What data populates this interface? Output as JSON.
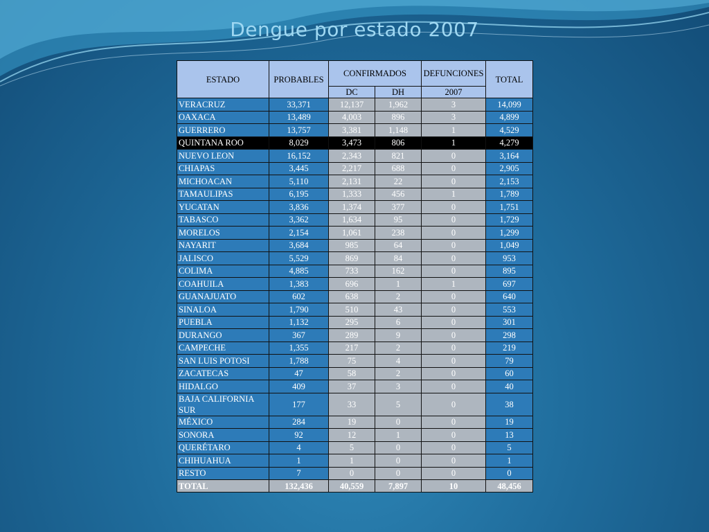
{
  "slide": {
    "title": "Dengue por estado 2007"
  },
  "table": {
    "headers": {
      "estado": "ESTADO",
      "probables": "PROBABLES",
      "confirmados": "CONFIRMADOS",
      "dc": "DC",
      "dh": "DH",
      "defunciones": "DEFUNCIONES",
      "year": "2007",
      "total": "TOTAL"
    },
    "rows": [
      [
        "VERACRUZ",
        "33,371",
        "12,137",
        "1,962",
        "3",
        "14,099"
      ],
      [
        "OAXACA",
        "13,489",
        "4,003",
        "896",
        "3",
        "4,899"
      ],
      [
        "GUERRERO",
        "13,757",
        "3,381",
        "1,148",
        "1",
        "4,529"
      ],
      [
        "QUINTANA ROO",
        "8,029",
        "3,473",
        "806",
        "1",
        "4,279"
      ],
      [
        "NUEVO LEON",
        "16,152",
        "2,343",
        "821",
        "0",
        "3,164"
      ],
      [
        "CHIAPAS",
        "3,445",
        "2,217",
        "688",
        "0",
        "2,905"
      ],
      [
        "MICHOACAN",
        "5,110",
        "2,131",
        "22",
        "0",
        "2,153"
      ],
      [
        "TAMAULIPAS",
        "6,195",
        "1,333",
        "456",
        "1",
        "1,789"
      ],
      [
        "YUCATAN",
        "3,836",
        "1,374",
        "377",
        "0",
        "1,751"
      ],
      [
        "TABASCO",
        "3,362",
        "1,634",
        "95",
        "0",
        "1,729"
      ],
      [
        "MORELOS",
        "2,154",
        "1,061",
        "238",
        "0",
        "1,299"
      ],
      [
        "NAYARIT",
        "3,684",
        "985",
        "64",
        "0",
        "1,049"
      ],
      [
        "JALISCO",
        "5,529",
        "869",
        "84",
        "0",
        "953"
      ],
      [
        "COLIMA",
        "4,885",
        "733",
        "162",
        "0",
        "895"
      ],
      [
        "COAHUILA",
        "1,383",
        "696",
        "1",
        "1",
        "697"
      ],
      [
        "GUANAJUATO",
        "602",
        "638",
        "2",
        "0",
        "640"
      ],
      [
        "SINALOA",
        "1,790",
        "510",
        "43",
        "0",
        "553"
      ],
      [
        "PUEBLA",
        "1,132",
        "295",
        "6",
        "0",
        "301"
      ],
      [
        "DURANGO",
        "367",
        "289",
        "9",
        "0",
        "298"
      ],
      [
        "CAMPECHE",
        "1,355",
        "217",
        "2",
        "0",
        "219"
      ],
      [
        "SAN LUIS POTOSI",
        "1,788",
        "75",
        "4",
        "0",
        "79"
      ],
      [
        "ZACATECAS",
        "47",
        "58",
        "2",
        "0",
        "60"
      ],
      [
        "HIDALGO",
        "409",
        "37",
        "3",
        "0",
        "40"
      ],
      [
        "BAJA CALIFORNIA SUR",
        "177",
        "33",
        "5",
        "0",
        "38"
      ],
      [
        "MÉXICO",
        "284",
        "19",
        "0",
        "0",
        "19"
      ],
      [
        "SONORA",
        "92",
        "12",
        "1",
        "0",
        "13"
      ],
      [
        "QUERÉTARO",
        "4",
        "5",
        "0",
        "0",
        "5"
      ],
      [
        "CHIHUAHUA",
        "1",
        "1",
        "0",
        "0",
        "1"
      ],
      [
        "RESTO",
        "7",
        "0",
        "0",
        "0",
        "0"
      ]
    ],
    "highlighted_row": "QUINTANA ROO",
    "totals": [
      "TOTAL",
      "132,436",
      "40,559",
      "7,897",
      "10",
      "48,456"
    ]
  },
  "colors": {
    "header_bg": "#aac4ec",
    "blue_cell": "#2d7bb8",
    "gray_cell": "#aeb6bf",
    "title_color": "#9fd8f2"
  }
}
